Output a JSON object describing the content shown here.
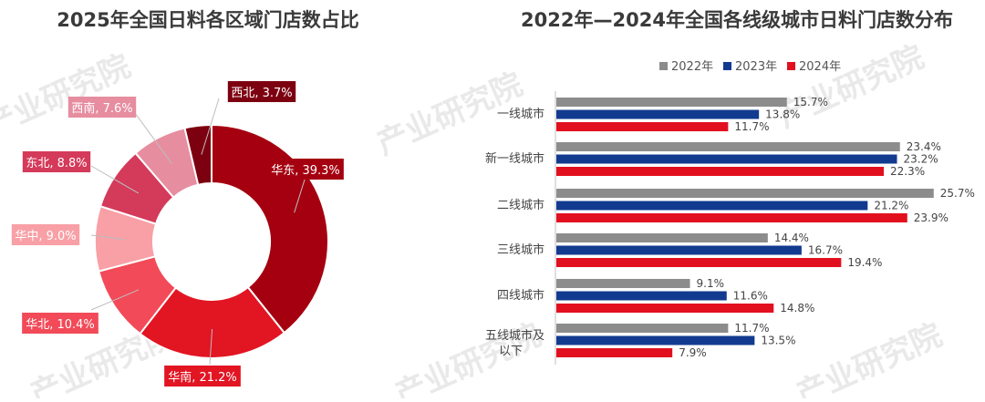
{
  "watermark": "产业研究院",
  "chart_data": [
    {
      "type": "pie",
      "title": "2025年全国日料各区域门店数占比",
      "slices": [
        {
          "label": "华东, 39.3%",
          "value": 39.3,
          "color": "#a50010"
        },
        {
          "label": "华南, 21.2%",
          "value": 21.2,
          "color": "#e21523"
        },
        {
          "label": "华北, 10.4%",
          "value": 10.4,
          "color": "#f24a58"
        },
        {
          "label": "华中, 9.0%",
          "value": 9.0,
          "color": "#f8a0a6"
        },
        {
          "label": "东北, 8.8%",
          "value": 8.8,
          "color": "#d43a5a"
        },
        {
          "label": "西南, 7.6%",
          "value": 7.6,
          "color": "#e78da0"
        },
        {
          "label": "西北, 3.7%",
          "value": 3.7,
          "color": "#7d0010"
        }
      ]
    },
    {
      "type": "bar",
      "orientation": "horizontal",
      "title": "2022年—2024年全国各线级城市日料门店数分布",
      "legend_position": "top",
      "categories": [
        "一线城市",
        "新一线城市",
        "二线城市",
        "三线城市",
        "四线城市",
        "五线城市及以下"
      ],
      "series": [
        {
          "name": "2022年",
          "color": "#8c8c8c",
          "values": [
            15.7,
            23.4,
            25.7,
            14.4,
            9.1,
            11.7
          ],
          "labels": [
            "15.7%",
            "23.4%",
            "25.7%",
            "14.4%",
            "9.1%",
            "11.7%"
          ]
        },
        {
          "name": "2023年",
          "color": "#123a8f",
          "values": [
            13.8,
            23.2,
            21.2,
            16.7,
            11.6,
            13.5
          ],
          "labels": [
            "13.8%",
            "23.2%",
            "21.2%",
            "16.7%",
            "11.6%",
            "13.5%"
          ]
        },
        {
          "name": "2024年",
          "color": "#e2101e",
          "values": [
            11.7,
            22.3,
            23.9,
            19.4,
            14.8,
            7.9
          ],
          "labels": [
            "11.7%",
            "22.3%",
            "23.9%",
            "19.4%",
            "14.8%",
            "7.9%"
          ]
        }
      ]
    }
  ]
}
